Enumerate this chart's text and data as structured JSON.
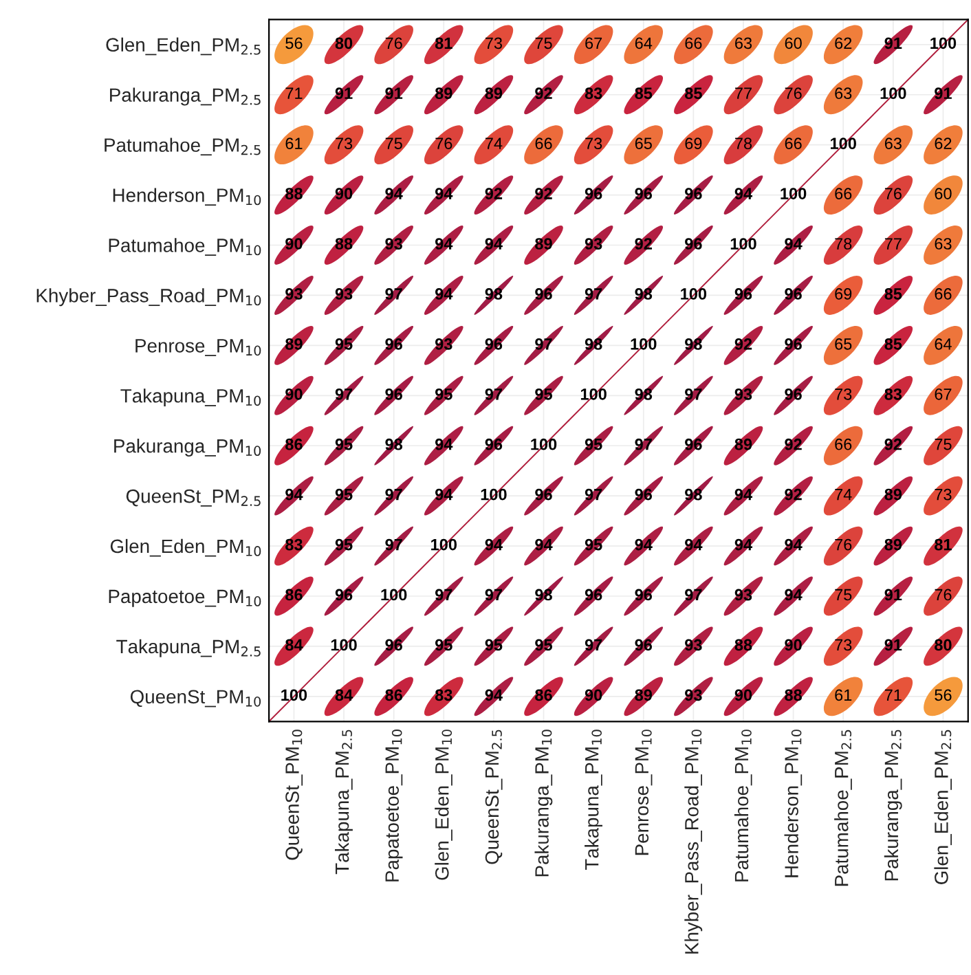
{
  "chart_data": {
    "type": "heatmap",
    "categories": [
      "QueenSt_PM$_{10}$",
      "Takapuna_PM$_{2.5}$",
      "Papatoetoe_PM$_{10}$",
      "Glen_Eden_PM$_{10}$",
      "QueenSt_PM$_{2.5}$",
      "Pakuranga_PM$_{10}$",
      "Takapuna_PM$_{10}$",
      "Penrose_PM$_{10}$",
      "Khyber_Pass_Road_PM$_{10}$",
      "Patumahoe_PM$_{10}$",
      "Henderson_PM$_{10}$",
      "Patumahoe_PM$_{2.5}$",
      "Pakuranga_PM$_{2.5}$",
      "Glen_Eden_PM$_{2.5}$"
    ],
    "y_categories": [
      "Glen_Eden_PM$_{2.5}$",
      "Pakuranga_PM$_{2.5}$",
      "Patumahoe_PM$_{2.5}$",
      "Henderson_PM$_{10}$",
      "Patumahoe_PM$_{10}$",
      "Khyber_Pass_Road_PM$_{10}$",
      "Penrose_PM$_{10}$",
      "Takapuna_PM$_{10}$",
      "Pakuranga_PM$_{10}$",
      "QueenSt_PM$_{2.5}$",
      "Glen_Eden_PM$_{10}$",
      "Papatoetoe_PM$_{10}$",
      "Takapuna_PM$_{2.5}$",
      "QueenSt_PM$_{10}$"
    ],
    "cells": [
      [
        56,
        80,
        76,
        81,
        73,
        75,
        67,
        64,
        66,
        63,
        60,
        62,
        91,
        100
      ],
      [
        71,
        91,
        91,
        89,
        89,
        92,
        83,
        85,
        85,
        77,
        76,
        63,
        100,
        91
      ],
      [
        61,
        73,
        75,
        76,
        74,
        66,
        73,
        65,
        69,
        78,
        66,
        100,
        63,
        62
      ],
      [
        88,
        90,
        94,
        94,
        92,
        92,
        96,
        96,
        96,
        94,
        100,
        66,
        76,
        60
      ],
      [
        90,
        88,
        93,
        94,
        94,
        89,
        93,
        92,
        96,
        100,
        94,
        78,
        77,
        63
      ],
      [
        93,
        93,
        97,
        94,
        98,
        96,
        97,
        98,
        100,
        96,
        96,
        69,
        85,
        66
      ],
      [
        89,
        95,
        96,
        93,
        96,
        97,
        98,
        100,
        98,
        92,
        96,
        65,
        85,
        64
      ],
      [
        90,
        97,
        96,
        95,
        97,
        95,
        100,
        98,
        97,
        93,
        96,
        73,
        83,
        67
      ],
      [
        86,
        95,
        98,
        94,
        96,
        100,
        95,
        97,
        96,
        89,
        92,
        66,
        92,
        75
      ],
      [
        94,
        95,
        97,
        94,
        100,
        96,
        97,
        96,
        98,
        94,
        92,
        74,
        89,
        73
      ],
      [
        83,
        95,
        97,
        100,
        94,
        94,
        95,
        94,
        94,
        94,
        94,
        76,
        89,
        81
      ],
      [
        86,
        96,
        100,
        97,
        97,
        98,
        96,
        96,
        97,
        93,
        94,
        75,
        91,
        76
      ],
      [
        84,
        100,
        96,
        95,
        95,
        95,
        97,
        96,
        93,
        88,
        90,
        73,
        91,
        80
      ],
      [
        100,
        84,
        86,
        83,
        94,
        86,
        90,
        89,
        93,
        90,
        88,
        61,
        71,
        56
      ]
    ],
    "data_labels": true,
    "grid": true
  }
}
